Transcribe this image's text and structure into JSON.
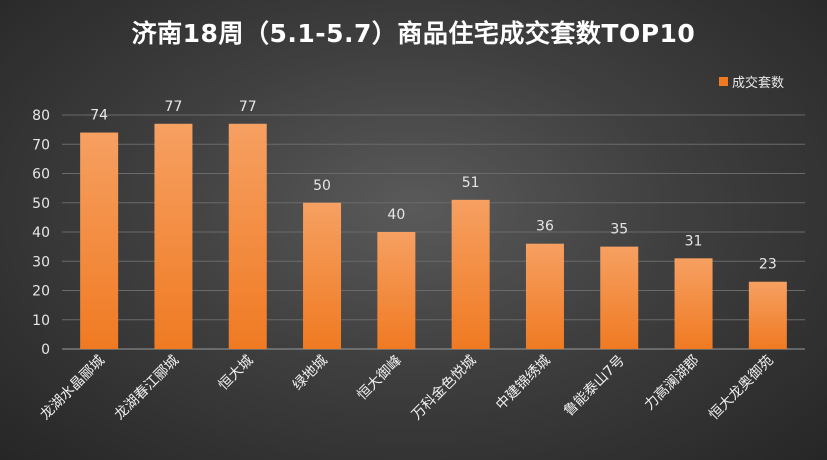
{
  "chart_data": {
    "type": "bar",
    "title": "济南18周（5.1-5.7）商品住宅成交套数TOP10",
    "categories": [
      "龙湖水晶郦城",
      "龙湖春江郦城",
      "恒大城",
      "绿地城",
      "恒大御峰",
      "万科金色悦城",
      "中建锦绣城",
      "鲁能泰山7号",
      "力高澜湖郡",
      "恒大龙奥御苑"
    ],
    "series": [
      {
        "name": "成交套数",
        "values": [
          74,
          77,
          77,
          50,
          40,
          51,
          36,
          35,
          31,
          23
        ]
      }
    ],
    "ylim": [
      0,
      80
    ],
    "yticks": [
      0,
      10,
      20,
      30,
      40,
      50,
      60,
      70,
      80
    ],
    "grid": true,
    "legend_position": "top-right",
    "bar_color": "#f07a22",
    "bar_color_light": "#f6a062",
    "background": "#3f3f3f"
  }
}
